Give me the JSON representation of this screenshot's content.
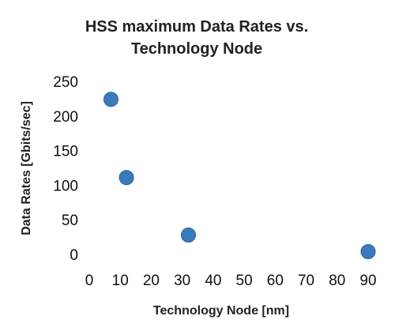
{
  "chart_data": {
    "type": "scatter",
    "title": "HSS maximum Data Rates vs. Technology Node",
    "title_lines": [
      "HSS maximum Data Rates vs.",
      "Technology Node"
    ],
    "xlabel": "Technology Node [nm]",
    "ylabel": "Data Rates [Gbits/sec]",
    "xlim": [
      0,
      90
    ],
    "ylim": [
      0,
      250
    ],
    "xticks": [
      0,
      10,
      20,
      30,
      40,
      50,
      60,
      70,
      80,
      90
    ],
    "yticks": [
      0,
      50,
      100,
      150,
      200,
      250
    ],
    "grid": false,
    "legend": "none",
    "marker_color": "#3a7bbf",
    "points": [
      {
        "x": 7,
        "y": 224
      },
      {
        "x": 12,
        "y": 111
      },
      {
        "x": 32,
        "y": 28
      },
      {
        "x": 90,
        "y": 4
      }
    ]
  }
}
